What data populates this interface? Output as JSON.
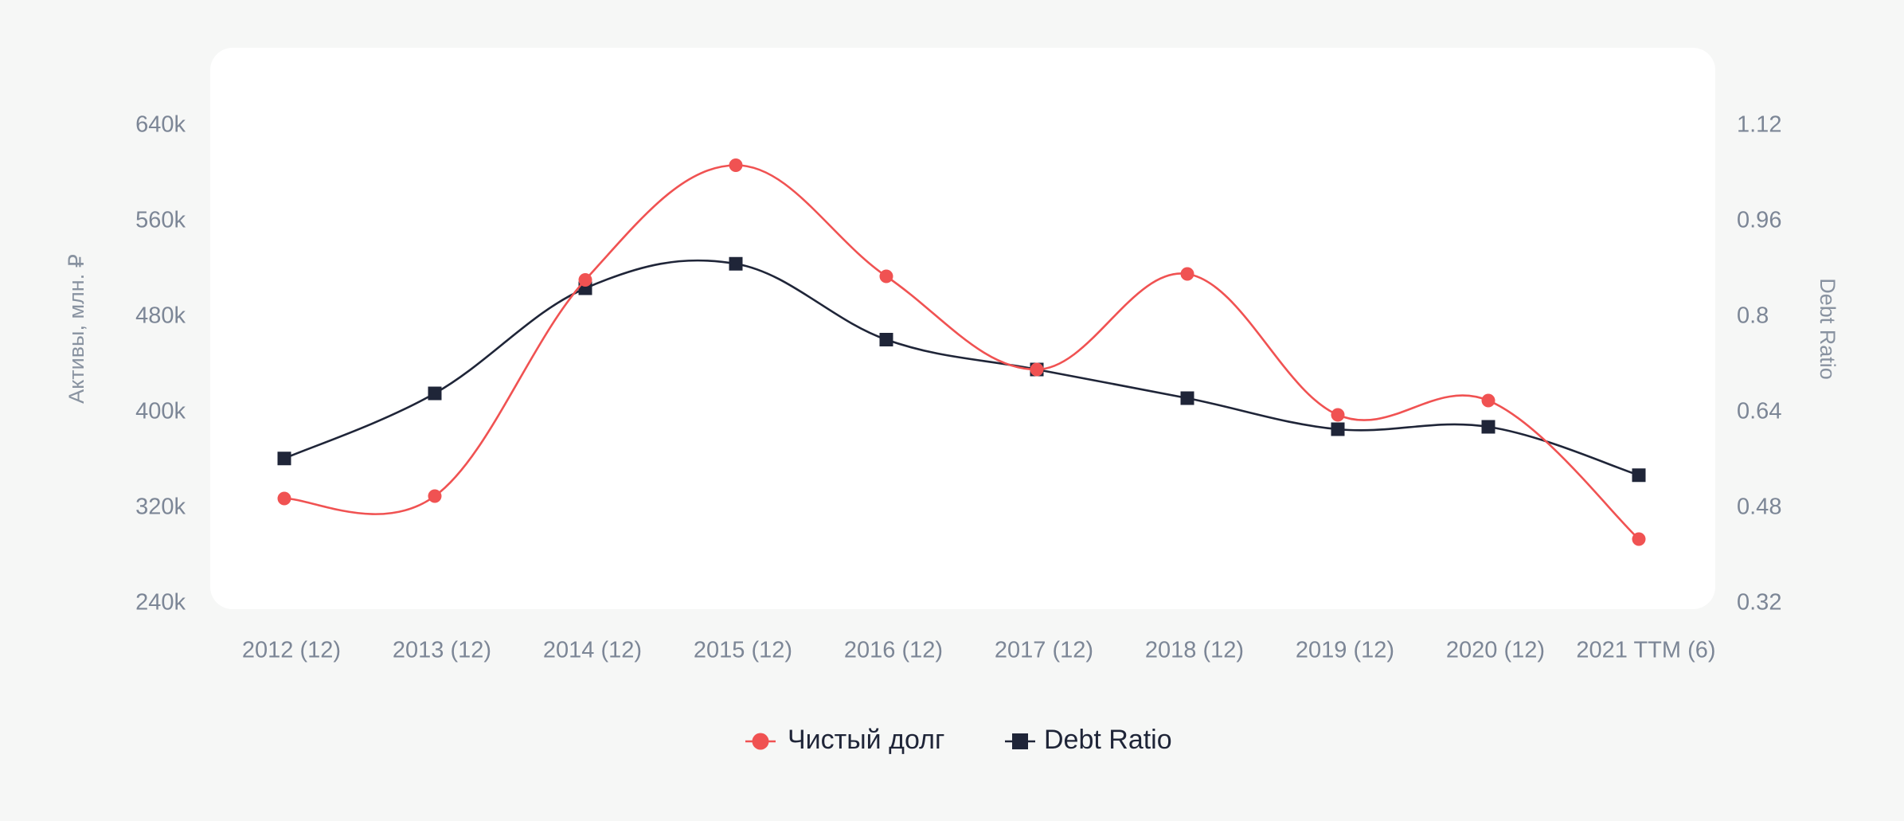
{
  "chart_data": {
    "type": "line",
    "categories": [
      "2012 (12)",
      "2013 (12)",
      "2014 (12)",
      "2015 (12)",
      "2016 (12)",
      "2017 (12)",
      "2018 (12)",
      "2019 (12)",
      "2020 (12)",
      "2021 TTM (6)"
    ],
    "y_left": {
      "label": "Активы, млн. ₽",
      "ticks": [
        "640k",
        "560k",
        "480k",
        "400k",
        "320k",
        "240k"
      ],
      "range": [
        240000,
        640000
      ]
    },
    "y_right": {
      "label": "Debt Ratio",
      "ticks": [
        "1.12",
        "0.96",
        "0.8",
        "0.64",
        "0.48",
        "0.32"
      ],
      "range": [
        0.32,
        1.12
      ]
    },
    "series": [
      {
        "name": "Чистый долг",
        "axis": "left",
        "color": "#f05252",
        "marker": "circle",
        "values": [
          328000,
          330000,
          511000,
          607000,
          514000,
          436000,
          516000,
          398000,
          410000,
          294000
        ]
      },
      {
        "name": "Debt Ratio",
        "axis": "right",
        "color": "#1f2538",
        "marker": "square",
        "values": [
          0.563,
          0.672,
          0.848,
          0.889,
          0.762,
          0.712,
          0.664,
          0.612,
          0.616,
          0.535
        ]
      }
    ],
    "legend_position": "bottom-center",
    "grid": false
  }
}
